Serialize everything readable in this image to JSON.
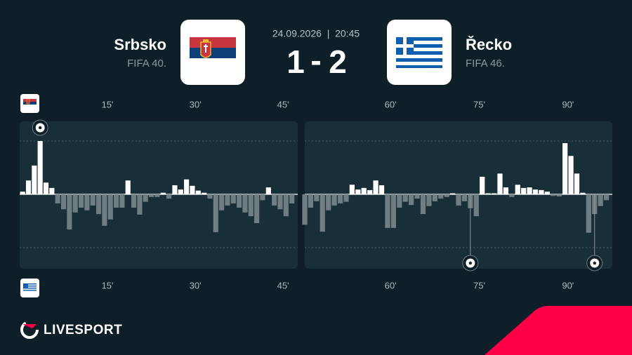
{
  "header": {
    "home_name": "Srbsko",
    "home_rank": "FIFA 40.",
    "away_name": "Řecko",
    "away_rank": "FIFA 46.",
    "datetime": "24.09.2026  |  20:45",
    "home_score": 1,
    "score_separator": "-",
    "away_score": 2
  },
  "chart_data": {
    "type": "bar",
    "xticks": [
      {
        "value": 15,
        "label": "15'"
      },
      {
        "value": 30,
        "label": "30'"
      },
      {
        "value": 45,
        "label": "45'"
      },
      {
        "value": 60,
        "label": "60'"
      },
      {
        "value": 75,
        "label": "75'"
      },
      {
        "value": 90,
        "label": "90'"
      }
    ],
    "ylim": [
      -100,
      100
    ],
    "yticks": [
      -100,
      100
    ],
    "grid": true,
    "home_color": "#ffffff",
    "away_color": "#6f7e83",
    "home_goals": [
      4
    ],
    "away_goals": [
      74,
      95
    ],
    "panels": [
      {
        "xlim": [
          0,
          47.5
        ],
        "x": [
          1,
          2,
          3,
          4,
          5,
          6,
          7,
          8,
          9,
          10,
          11,
          12,
          13,
          14,
          15,
          16,
          17,
          18,
          19,
          20,
          21,
          22,
          23,
          24,
          25,
          26,
          27,
          28,
          29,
          30,
          31,
          32,
          33,
          34,
          35,
          36,
          37,
          38,
          39,
          40,
          41,
          42,
          43,
          44,
          45,
          46,
          47
        ],
        "values": [
          5,
          26,
          54,
          100,
          22,
          12,
          -17,
          -28,
          -66,
          -34,
          -25,
          -30,
          -21,
          -37,
          -59,
          -47,
          -25,
          -25,
          26,
          -25,
          -38,
          -14,
          -5,
          -5,
          3,
          -8,
          17,
          9,
          28,
          16,
          7,
          3,
          -8,
          -71,
          -30,
          -21,
          -17,
          -25,
          -34,
          -41,
          -54,
          -11,
          13,
          -21,
          -28,
          -41,
          -17
        ]
      },
      {
        "xlim": [
          45.5,
          97.5
        ],
        "x": [
          46,
          47,
          48,
          49,
          50,
          51,
          52,
          53,
          54,
          55,
          56,
          57,
          58,
          59,
          60,
          61,
          62,
          63,
          64,
          65,
          66,
          67,
          68,
          69,
          70,
          71,
          72,
          73,
          74,
          75,
          76,
          77,
          78,
          79,
          80,
          81,
          82,
          83,
          84,
          85,
          86,
          87,
          88,
          89,
          90,
          91,
          92,
          93,
          94,
          95,
          96,
          97
        ],
        "values": [
          -57,
          -25,
          -13,
          -70,
          -30,
          -21,
          -17,
          -14,
          18,
          9,
          12,
          8,
          26,
          17,
          -63,
          -63,
          -25,
          -14,
          -20,
          -8,
          -37,
          -22,
          -13,
          -8,
          -5,
          2,
          -21,
          -13,
          -26,
          -41,
          33,
          2,
          2,
          39,
          13,
          -5,
          18,
          12,
          13,
          9,
          8,
          5,
          -3,
          -4,
          96,
          72,
          39,
          3,
          -72,
          -37,
          -22,
          -11
        ]
      }
    ]
  },
  "brand": "LIVESPORT"
}
